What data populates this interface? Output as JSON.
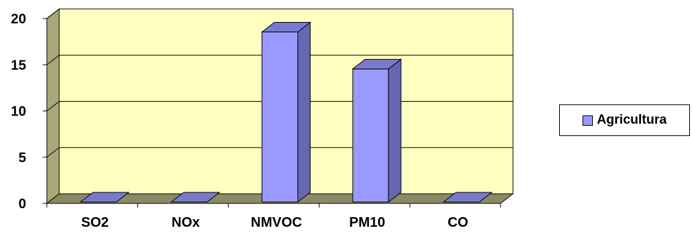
{
  "chart_data": {
    "type": "bar",
    "categories": [
      "SO2",
      "NOx",
      "NMVOC",
      "PM10",
      "CO"
    ],
    "series": [
      {
        "name": "Agricultura",
        "values": [
          0,
          0,
          18.4,
          14.4,
          0
        ]
      }
    ],
    "ylim": [
      0,
      20
    ],
    "yticks": [
      0,
      5,
      10,
      15,
      20
    ],
    "grid": true,
    "legend_position": "right",
    "colors": {
      "bar_front": "#9999ff",
      "bar_side": "#6666b3",
      "bar_top": "#7a7acc",
      "wall": "#ffffc0",
      "wall_side": "#a8a878",
      "floor": "#8a8a66",
      "legend_swatch": "#9999ff"
    }
  }
}
